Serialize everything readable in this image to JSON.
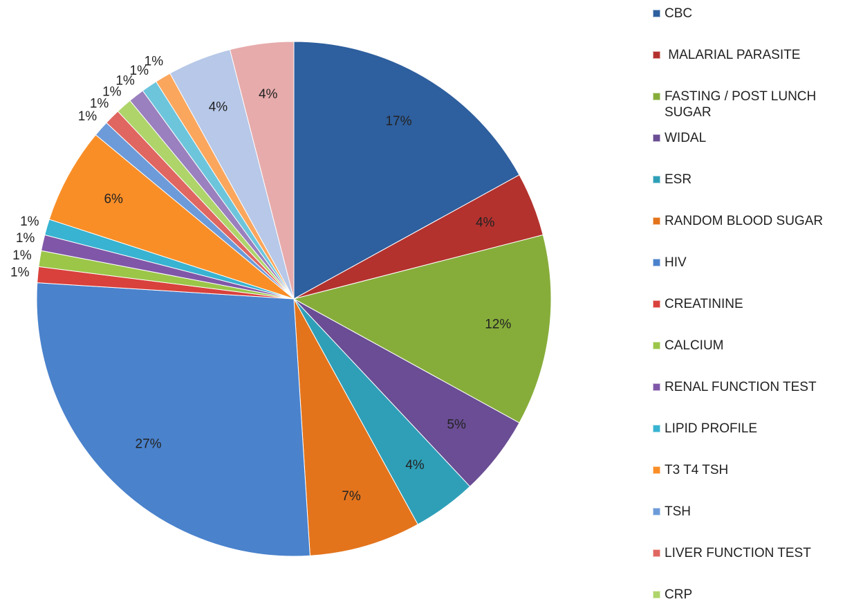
{
  "chart_data": {
    "type": "pie",
    "categories": [
      "CBC",
      " MALARIAL PARASITE",
      "FASTING / POST LUNCH SUGAR",
      "WIDAL",
      "ESR",
      "RANDOM BLOOD SUGAR",
      "HIV",
      "CREATININE",
      "CALCIUM",
      "RENAL FUNCTION TEST",
      "LIPID PROFILE",
      "T3 T4 TSH",
      "TSH",
      "LIVER FUNCTION TEST",
      "CRP",
      null,
      null,
      null,
      null,
      null
    ],
    "values": [
      17,
      4,
      12,
      5,
      4,
      7,
      27,
      1,
      1,
      1,
      1,
      6,
      1,
      1,
      1,
      1,
      1,
      1,
      4,
      4
    ],
    "value_labels": [
      "17%",
      "4%",
      "12%",
      "5%",
      "4%",
      "7%",
      "27%",
      "1%",
      "1%",
      "1%",
      "1%",
      "6%",
      "1%",
      "1%",
      "1%",
      "1%",
      "1%",
      "1%",
      "4%",
      "4%"
    ],
    "colors": [
      "#2e5f9e",
      "#b3322e",
      "#86ad3a",
      "#6a4d94",
      "#2f9fb8",
      "#e3741c",
      "#4a82cc",
      "#d9413c",
      "#9bc648",
      "#8057a8",
      "#38b3d1",
      "#f98e27",
      "#6d9bd9",
      "#e06661",
      "#aed46a",
      "#9a80be",
      "#6dc5dc",
      "#fba65d",
      "#b7c8e8",
      "#e7abab"
    ],
    "legend": "right"
  }
}
